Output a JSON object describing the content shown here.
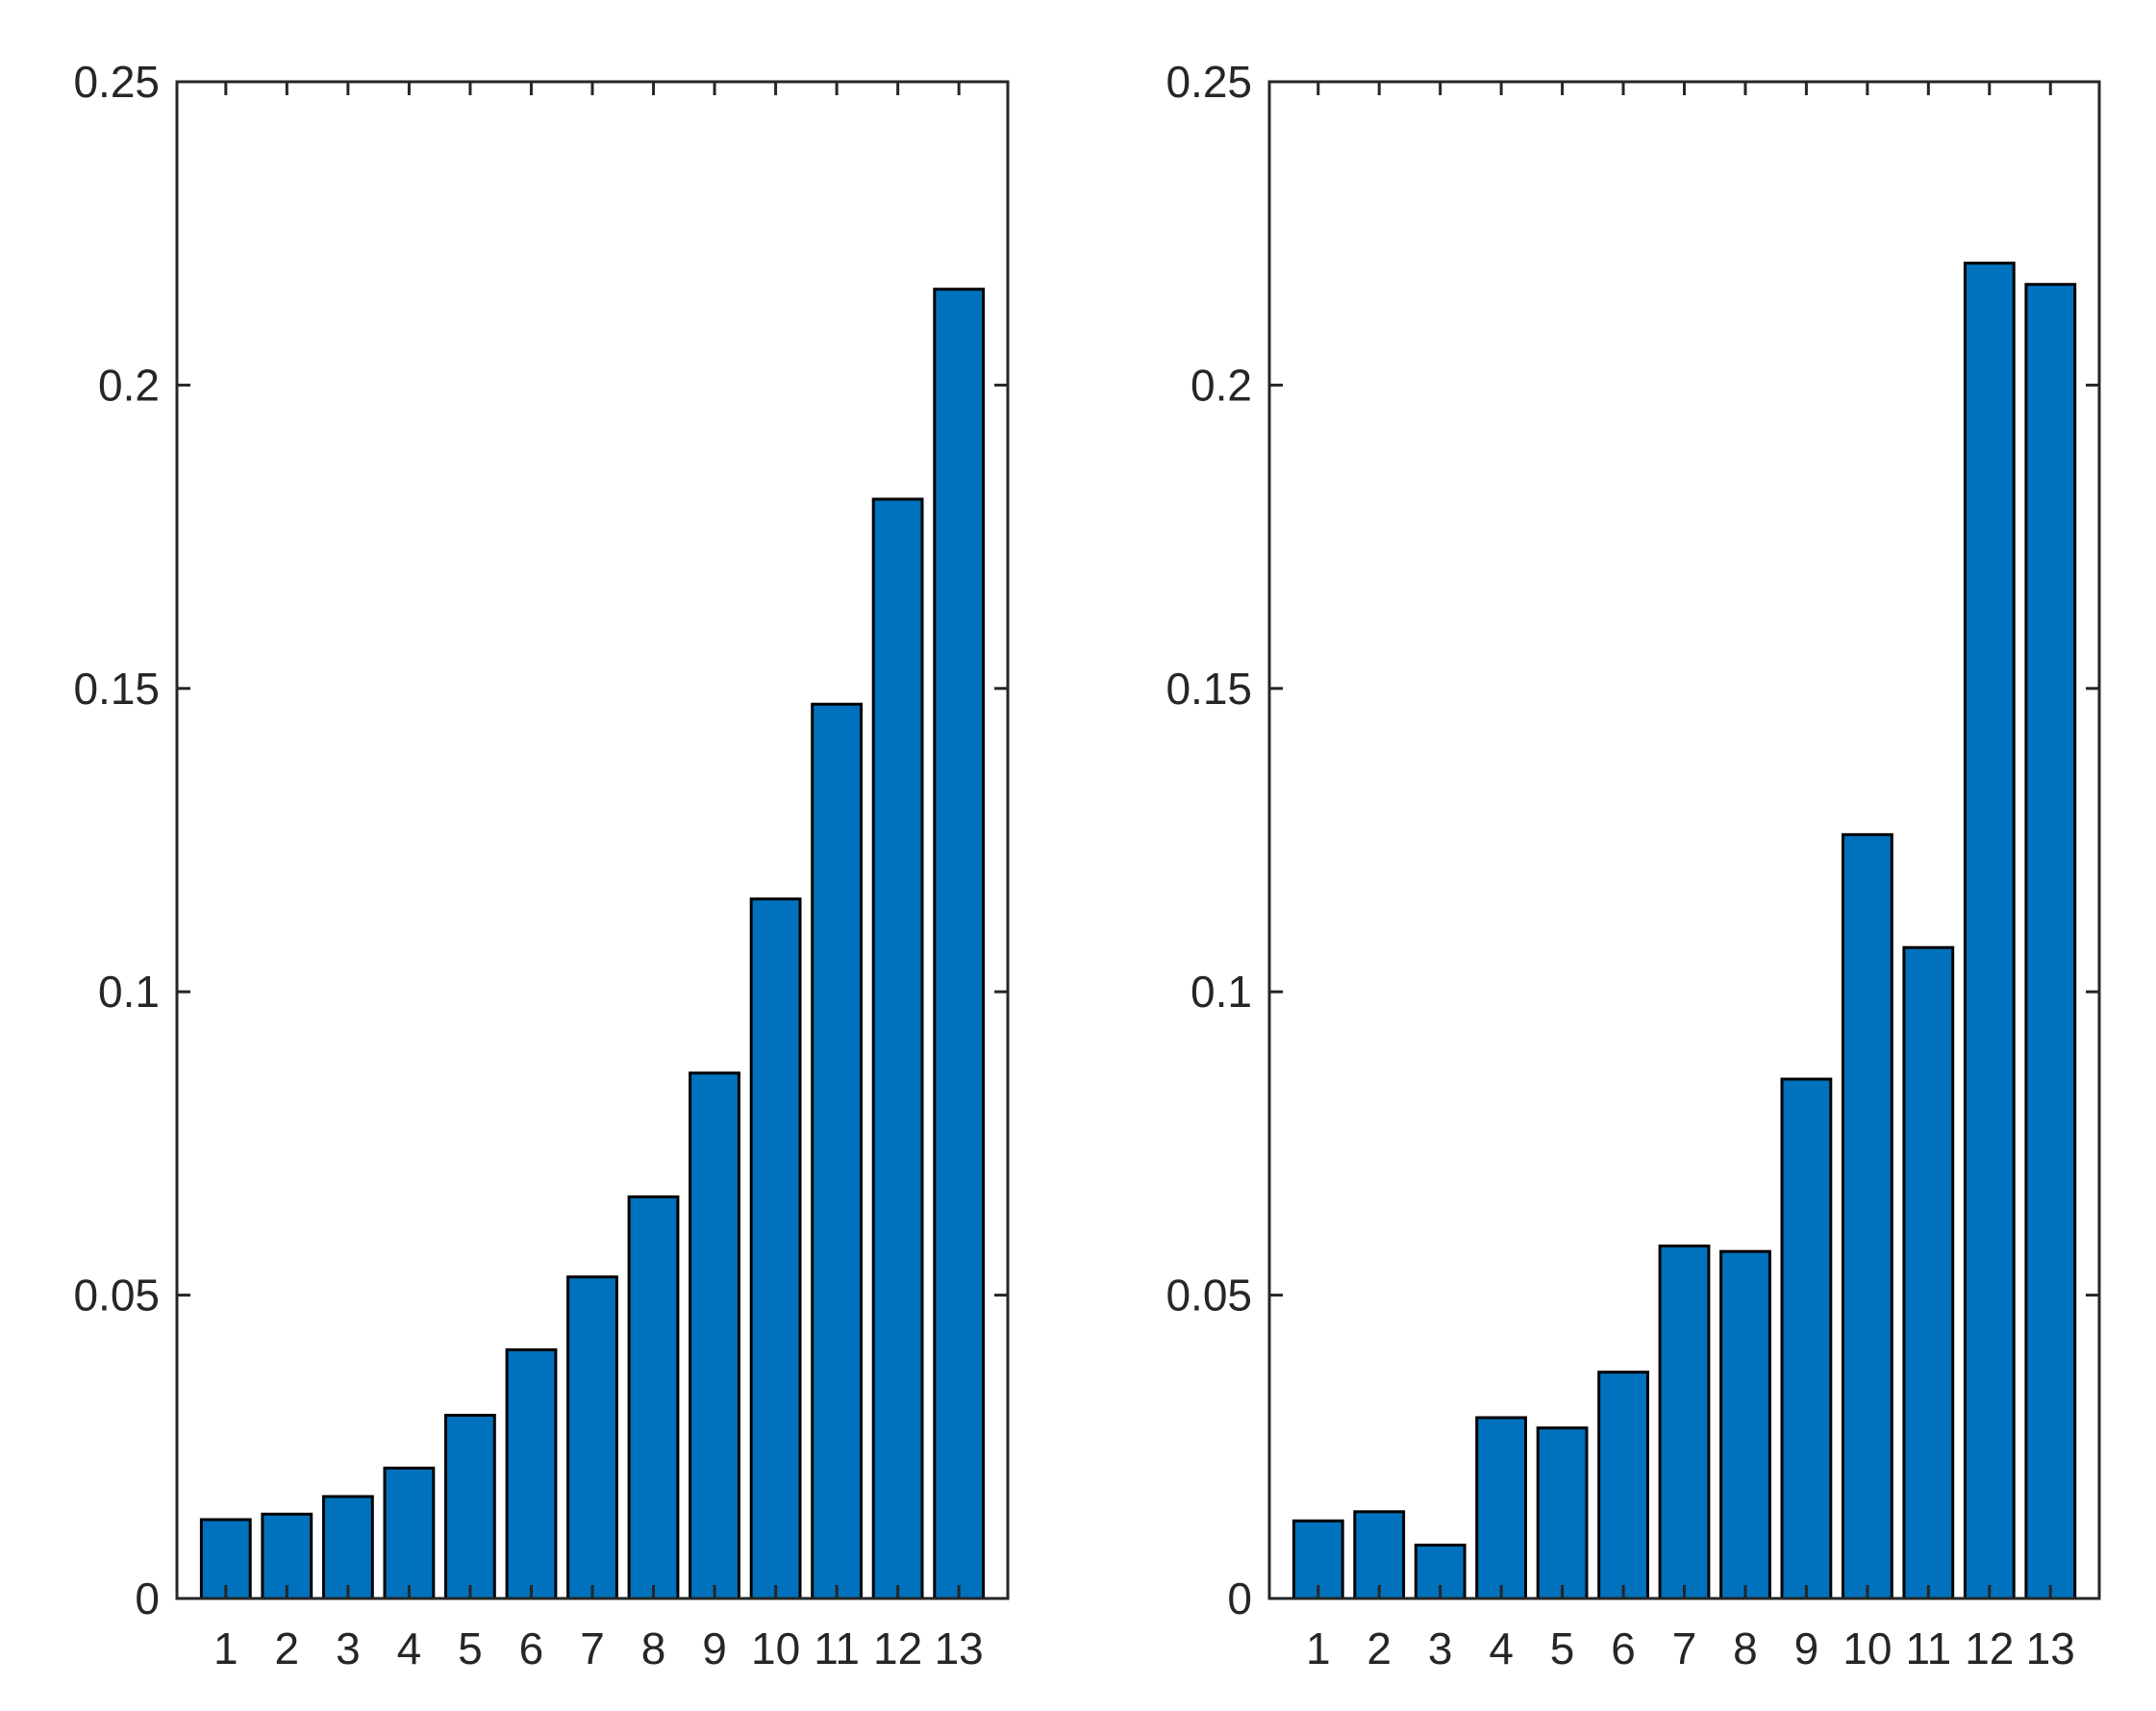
{
  "chart_data": [
    {
      "type": "bar",
      "categories": [
        "1",
        "2",
        "3",
        "4",
        "5",
        "6",
        "7",
        "8",
        "9",
        "10",
        "11",
        "12",
        "13"
      ],
      "values": [
        0.013,
        0.0139,
        0.0168,
        0.0215,
        0.0302,
        0.041,
        0.053,
        0.0662,
        0.0866,
        0.1153,
        0.1474,
        0.1812,
        0.2158
      ],
      "ylim": [
        0,
        0.25
      ],
      "yticks": [
        "0",
        "0.05",
        "0.1",
        "0.15",
        "0.2",
        "0.25"
      ],
      "grid": false,
      "bar_color": "#0072bd"
    },
    {
      "type": "bar",
      "categories": [
        "1",
        "2",
        "3",
        "4",
        "5",
        "6",
        "7",
        "8",
        "9",
        "10",
        "11",
        "12",
        "13"
      ],
      "values": [
        0.0128,
        0.0143,
        0.0088,
        0.0298,
        0.0281,
        0.0373,
        0.0581,
        0.0572,
        0.0856,
        0.1259,
        0.1073,
        0.2201,
        0.2166
      ],
      "ylim": [
        0,
        0.25
      ],
      "yticks": [
        "0",
        "0.05",
        "0.1",
        "0.15",
        "0.2",
        "0.25"
      ],
      "grid": false,
      "bar_color": "#0072bd"
    }
  ]
}
